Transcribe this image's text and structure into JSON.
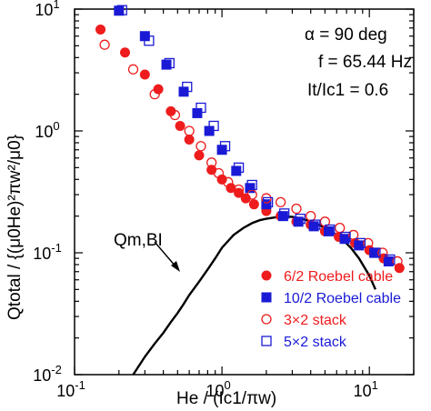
{
  "chart_data": {
    "type": "scatter",
    "xscale": "log",
    "yscale": "log",
    "xlim": [
      0.1,
      20
    ],
    "ylim": [
      0.01,
      10
    ],
    "xticks": [
      {
        "value": 0.1,
        "base": "10",
        "exp": "-1"
      },
      {
        "value": 1,
        "base": "10",
        "exp": "0"
      },
      {
        "value": 10,
        "base": "10",
        "exp": "1"
      }
    ],
    "yticks": [
      {
        "value": 0.01,
        "base": "10",
        "exp": "-2"
      },
      {
        "value": 0.1,
        "base": "10",
        "exp": "-1"
      },
      {
        "value": 1,
        "base": "10",
        "exp": "0"
      },
      {
        "value": 10,
        "base": "10",
        "exp": "1"
      }
    ],
    "xlabel": "He / (Ic1/πw)",
    "ylabel": "Qtotal / {(μ0He)²πw²/μ0}",
    "annotations": {
      "alpha": "α = 90 deg",
      "freq": "f = 65.44 Hz",
      "ratio": "It/Ic1 = 0.6",
      "curve_label": "Qm,BI"
    },
    "colors": {
      "red": "#ee1c1c",
      "blue": "#1a1ad6",
      "line": "#000000"
    },
    "series": [
      {
        "name": "6/2 Roebel cable",
        "marker": "circle-filled",
        "color": "#ee1c1c",
        "x": [
          0.15,
          0.22,
          0.3,
          0.37,
          0.45,
          0.52,
          0.6,
          0.7,
          0.85,
          1.0,
          1.15,
          1.3,
          1.45,
          1.65,
          2.0,
          2.5,
          3.2,
          4.0,
          5.0,
          6.2,
          8.0,
          10.0,
          12.5,
          16.0
        ],
        "y": [
          6.8,
          4.4,
          2.9,
          2.2,
          1.45,
          1.1,
          0.85,
          0.63,
          0.48,
          0.4,
          0.34,
          0.31,
          0.28,
          0.25,
          0.22,
          0.2,
          0.18,
          0.17,
          0.15,
          0.135,
          0.12,
          0.105,
          0.09,
          0.075
        ]
      },
      {
        "name": "10/2 Roebel cable",
        "marker": "square-filled",
        "color": "#1a1ad6",
        "x": [
          0.2,
          0.3,
          0.42,
          0.55,
          0.68,
          0.82,
          1.0,
          1.25,
          1.55,
          2.0,
          2.6,
          3.3,
          4.2,
          5.3,
          6.8,
          8.5,
          10.8,
          13.5
        ],
        "y": [
          9.7,
          6.0,
          3.5,
          2.1,
          1.4,
          1.0,
          0.7,
          0.47,
          0.34,
          0.25,
          0.2,
          0.18,
          0.165,
          0.15,
          0.13,
          0.115,
          0.1,
          0.085
        ]
      },
      {
        "name": "3×2 stack",
        "marker": "circle-open",
        "color": "#ee1c1c",
        "x": [
          0.16,
          0.25,
          0.35,
          0.48,
          0.6,
          0.72,
          0.85,
          0.95,
          1.1,
          1.3,
          1.6,
          2.0,
          2.5,
          3.2,
          4.0,
          5.0,
          6.3,
          7.8,
          9.8,
          12.3,
          15.5
        ],
        "y": [
          5.1,
          3.2,
          2.0,
          1.35,
          1.0,
          0.75,
          0.55,
          0.45,
          0.38,
          0.33,
          0.3,
          0.28,
          0.26,
          0.23,
          0.2,
          0.18,
          0.16,
          0.14,
          0.12,
          0.1,
          0.085
        ]
      },
      {
        "name": "5×2 stack",
        "marker": "square-open",
        "color": "#1a1ad6",
        "x": [
          0.21,
          0.32,
          0.44,
          0.58,
          0.72,
          0.88,
          1.05,
          1.3,
          1.6,
          2.05,
          2.65,
          3.4,
          4.3,
          5.4,
          6.9,
          8.7,
          11.0,
          13.8
        ],
        "y": [
          9.8,
          5.5,
          3.6,
          2.3,
          1.55,
          1.1,
          0.75,
          0.5,
          0.36,
          0.26,
          0.21,
          0.19,
          0.17,
          0.155,
          0.135,
          0.12,
          0.1,
          0.088
        ]
      },
      {
        "marker": "line",
        "color": "#000000",
        "x": [
          0.25,
          0.3,
          0.35,
          0.4,
          0.45,
          0.5,
          0.55,
          0.6,
          0.7,
          0.8,
          0.9,
          1.0,
          1.2,
          1.4,
          1.6,
          1.8,
          2.0,
          2.3,
          2.6,
          3.0,
          3.5,
          4.0,
          4.5,
          5.0,
          5.7,
          6.5,
          7.5,
          8.5,
          10.0,
          11.0
        ],
        "y": [
          0.01,
          0.014,
          0.018,
          0.022,
          0.027,
          0.032,
          0.038,
          0.045,
          0.058,
          0.073,
          0.09,
          0.11,
          0.14,
          0.16,
          0.175,
          0.185,
          0.19,
          0.195,
          0.198,
          0.197,
          0.19,
          0.18,
          0.17,
          0.16,
          0.145,
          0.13,
          0.11,
          0.09,
          0.065,
          0.05
        ]
      }
    ]
  }
}
